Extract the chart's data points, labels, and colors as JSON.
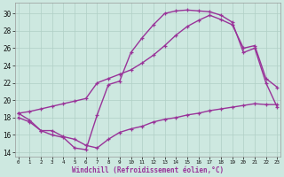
{
  "xlabel": "Windchill (Refroidissement éolien,°C)",
  "bg_color": "#cde8e0",
  "line_color": "#993399",
  "grid_color": "#b0cfc5",
  "xlim_min": -0.3,
  "xlim_max": 23.3,
  "ylim_min": 13.5,
  "ylim_max": 31.2,
  "yticks": [
    14,
    16,
    18,
    20,
    22,
    24,
    26,
    28,
    30
  ],
  "xticks": [
    0,
    1,
    2,
    3,
    4,
    5,
    6,
    7,
    8,
    9,
    10,
    11,
    12,
    13,
    14,
    15,
    16,
    17,
    18,
    19,
    20,
    21,
    22,
    23
  ],
  "curve1_x": [
    0,
    1,
    2,
    3,
    4,
    5,
    6,
    7,
    8,
    9,
    10,
    11,
    12,
    13,
    14,
    15,
    16,
    17,
    18,
    19,
    20,
    21,
    22,
    23
  ],
  "curve1_y": [
    18.5,
    17.7,
    16.5,
    16.0,
    15.7,
    14.5,
    14.3,
    18.3,
    21.8,
    22.2,
    25.5,
    27.2,
    28.7,
    30.0,
    30.3,
    30.4,
    30.3,
    30.2,
    29.8,
    29.0,
    25.5,
    26.0,
    22.0,
    19.2
  ],
  "curve2_x": [
    0,
    1,
    2,
    3,
    4,
    5,
    6,
    7,
    8,
    9,
    10,
    11,
    12,
    13,
    14,
    15,
    16,
    17,
    18,
    19,
    20,
    21,
    22,
    23
  ],
  "curve2_y": [
    18.5,
    18.7,
    19.0,
    19.3,
    19.6,
    19.9,
    20.2,
    22.0,
    22.5,
    23.0,
    23.5,
    24.3,
    25.2,
    26.3,
    27.5,
    28.5,
    29.2,
    29.8,
    29.3,
    28.7,
    26.0,
    26.3,
    22.5,
    21.5
  ],
  "curve3_x": [
    0,
    1,
    2,
    3,
    4,
    5,
    6,
    7,
    8,
    9,
    10,
    11,
    12,
    13,
    14,
    15,
    16,
    17,
    18,
    19,
    20,
    21,
    22,
    23
  ],
  "curve3_y": [
    18.0,
    17.5,
    16.5,
    16.5,
    15.8,
    15.5,
    14.8,
    14.5,
    15.5,
    16.3,
    16.7,
    17.0,
    17.5,
    17.8,
    18.0,
    18.3,
    18.5,
    18.8,
    19.0,
    19.2,
    19.4,
    19.6,
    19.5,
    19.5
  ],
  "linewidth": 1.0,
  "markersize": 3.5
}
